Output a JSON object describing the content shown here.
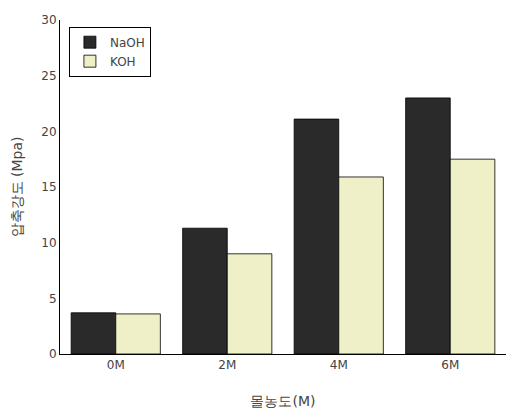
{
  "chart_data": {
    "type": "bar",
    "categories": [
      "0M",
      "2M",
      "4M",
      "6M"
    ],
    "series": [
      {
        "name": "NaOH",
        "color": "#2a2a2a",
        "values": [
          3.7,
          11.3,
          21.1,
          23.0
        ]
      },
      {
        "name": "KOH",
        "color": "#f0f0c8",
        "values": [
          3.6,
          9.0,
          15.9,
          17.5
        ]
      }
    ],
    "xlabel": "몰농도(M)",
    "ylabel": "압축강도 (Mpa)",
    "ylim": [
      0,
      30
    ],
    "yticks": [
      0,
      5,
      10,
      15,
      20,
      25,
      30
    ],
    "grid": false,
    "legend": "upper left"
  }
}
